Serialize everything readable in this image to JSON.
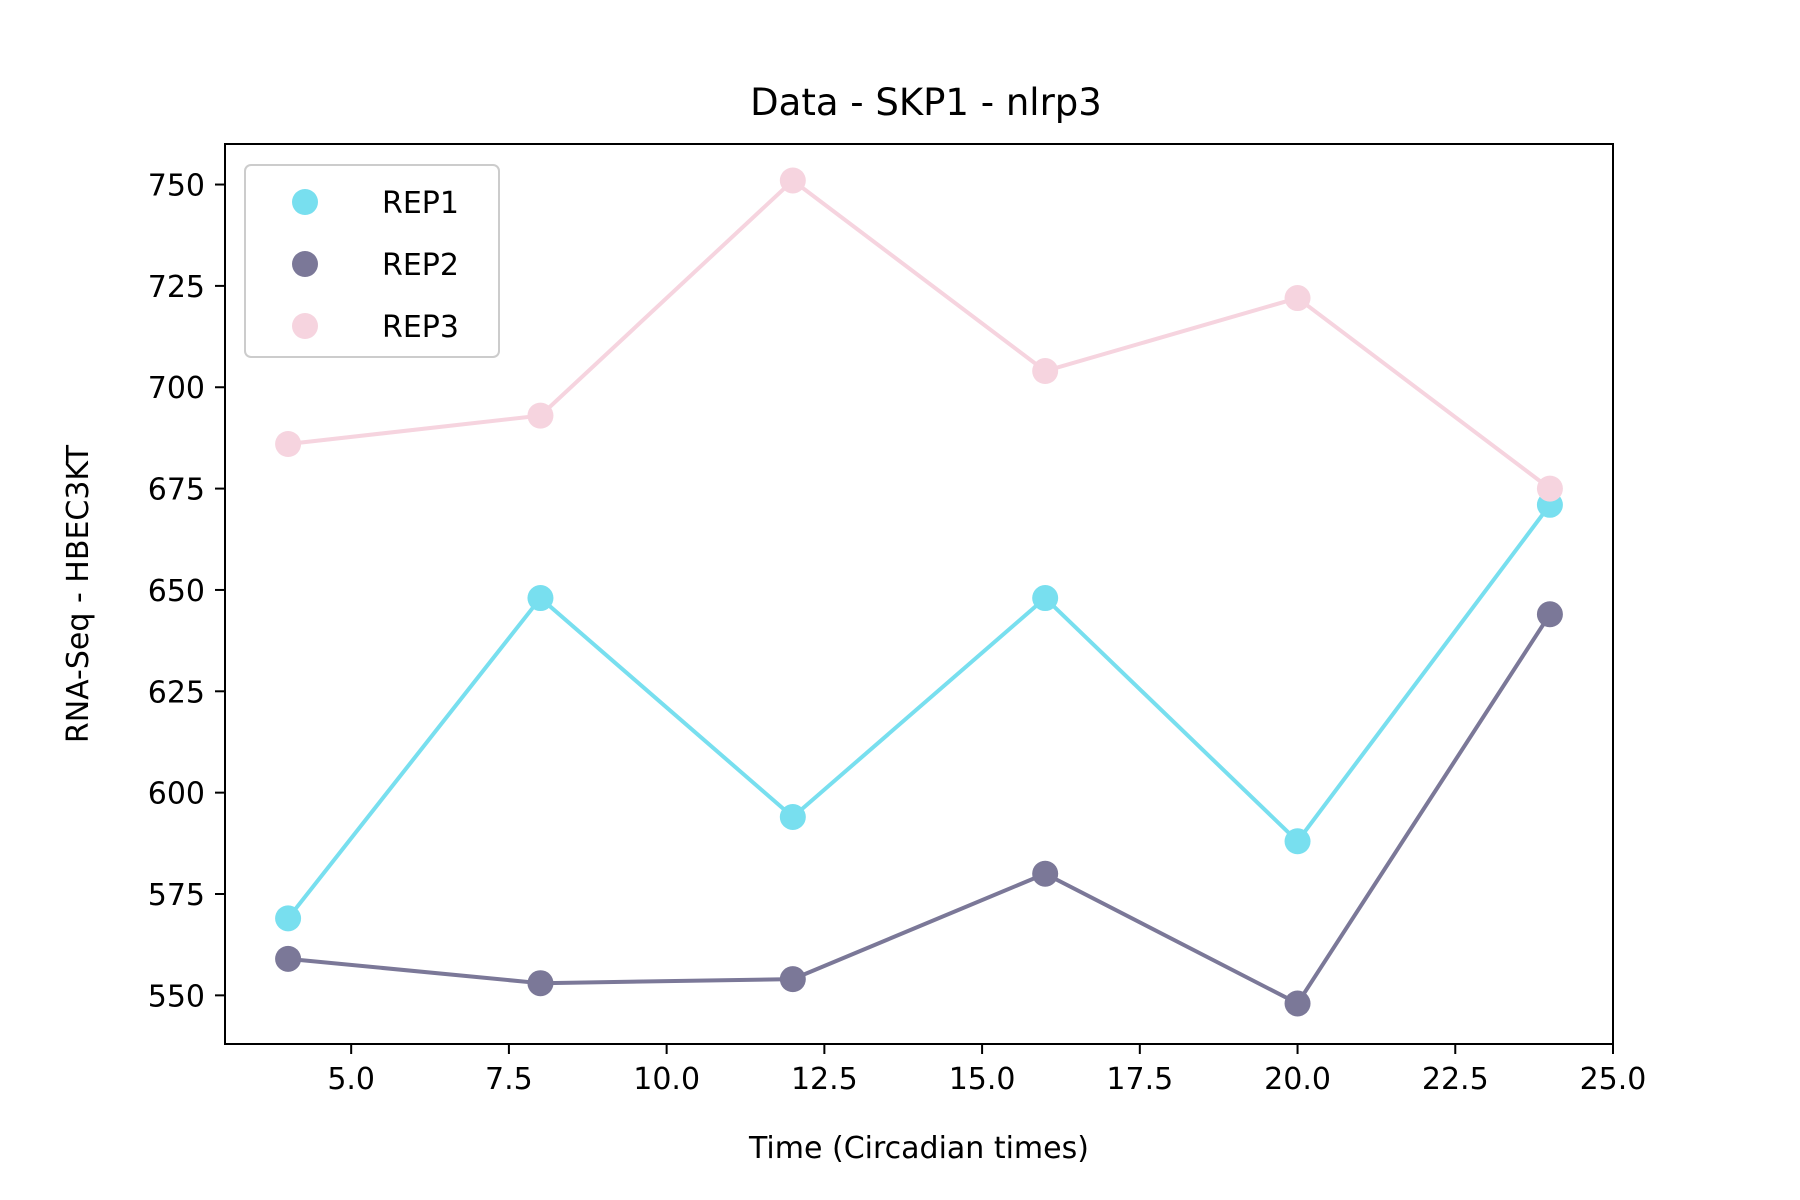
{
  "chart_data": {
    "type": "line",
    "title": "Data - SKP1 - nlrp3",
    "xlabel": "Time (Circadian times)",
    "ylabel": "RNA-Seq - HBEC3KT",
    "xlim": [
      3.0,
      25.0
    ],
    "ylim": [
      538,
      760
    ],
    "xticks": [
      "5.0",
      "7.5",
      "10.0",
      "12.5",
      "15.0",
      "17.5",
      "20.0",
      "22.5",
      "25.0"
    ],
    "yticks": [
      "550",
      "575",
      "600",
      "625",
      "650",
      "675",
      "700",
      "725",
      "750"
    ],
    "x": [
      4,
      8,
      12,
      16,
      20,
      24
    ],
    "series": [
      {
        "name": "REP1",
        "color": "#78dfef",
        "values": [
          569,
          648,
          594,
          648,
          588,
          671
        ]
      },
      {
        "name": "REP2",
        "color": "#7b7898",
        "values": [
          559,
          553,
          554,
          580,
          548,
          644
        ]
      },
      {
        "name": "REP3",
        "color": "#f6d4df",
        "values": [
          686,
          693,
          751,
          704,
          722,
          675
        ]
      }
    ],
    "legend_position": "top-left",
    "grid": false
  }
}
